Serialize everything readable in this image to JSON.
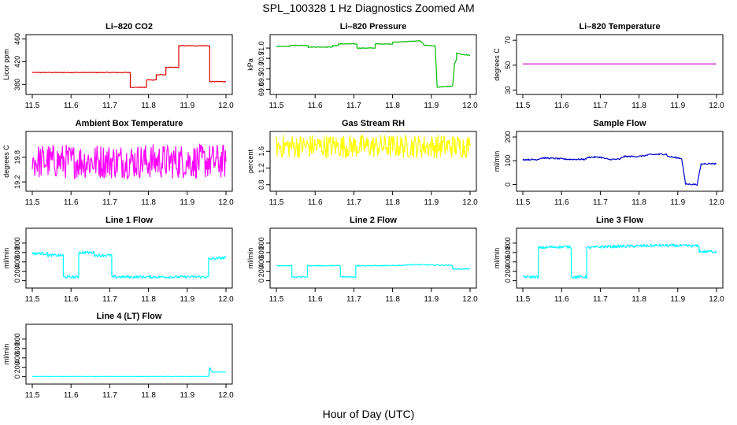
{
  "title": "SPL_100328  1 Hz Diagnostics Zoomed AM",
  "xlabel": "Hour of Day (UTC)",
  "chart_data": [
    {
      "type": "line",
      "title": "Li–820 CO2",
      "ylabel": "Licor ppm",
      "color": "#dd0000",
      "xlim": [
        11.5,
        12.0
      ],
      "ylim": [
        368,
        462
      ],
      "xticks": [
        "11.5",
        "11.6",
        "11.7",
        "11.8",
        "11.9",
        "12.0"
      ],
      "yticks": [
        "380",
        "420",
        "460"
      ],
      "ytick_values": [
        380,
        420,
        460
      ],
      "noise": 0.6,
      "series": [
        {
          "x": [
            11.5,
            11.753,
            11.753,
            11.795,
            11.795,
            11.82,
            11.82,
            11.845,
            11.845,
            11.878,
            11.878,
            11.958,
            11.958,
            12.0
          ],
          "y": [
            401,
            401,
            375,
            375,
            388,
            388,
            397,
            397,
            410,
            410,
            448,
            448,
            385,
            385
          ]
        }
      ]
    },
    {
      "type": "line",
      "title": "Li–820 Pressure",
      "ylabel": "kPa",
      "color": "#00bb00",
      "xlim": [
        11.5,
        12.0
      ],
      "ylim": [
        68.9,
        71.5
      ],
      "xticks": [
        "11.5",
        "11.6",
        "11.7",
        "11.8",
        "11.9",
        "12.0"
      ],
      "yticks": [
        "69.0",
        "69.5",
        "70.0",
        "70.5",
        "71.0"
      ],
      "ytick_values": [
        69.0,
        69.5,
        70.0,
        70.5,
        71.0
      ],
      "noise": 0.015,
      "series": [
        {
          "x": [
            11.5,
            11.535,
            11.535,
            11.582,
            11.582,
            11.645,
            11.645,
            11.66,
            11.66,
            11.708,
            11.708,
            11.755,
            11.755,
            11.8,
            11.8,
            11.87,
            11.87,
            11.88,
            11.88,
            11.91,
            11.915,
            11.915,
            11.955,
            11.96,
            11.965,
            11.965,
            11.98,
            12.0
          ],
          "y": [
            71.08,
            71.08,
            71.13,
            71.13,
            71.05,
            71.05,
            71.12,
            71.12,
            71.2,
            71.2,
            71.0,
            71.0,
            71.2,
            71.2,
            71.28,
            71.35,
            71.35,
            71.2,
            71.15,
            71.1,
            69.1,
            69.1,
            69.15,
            70.25,
            70.45,
            70.75,
            70.68,
            70.65
          ]
        }
      ]
    },
    {
      "type": "line",
      "title": "Li–820 Temperature",
      "ylabel": "degrees C",
      "color": "#cc00cc",
      "xlim": [
        11.5,
        12.0
      ],
      "ylim": [
        29,
        72
      ],
      "xticks": [
        "11.5",
        "11.6",
        "11.7",
        "11.8",
        "11.9",
        "12.0"
      ],
      "yticks": [
        "30",
        "50",
        "70"
      ],
      "ytick_values": [
        30,
        50,
        70
      ],
      "noise": 0,
      "series": [
        {
          "x": [
            11.5,
            12.0
          ],
          "y": [
            51,
            51
          ]
        }
      ]
    },
    {
      "type": "line",
      "title": "Ambient Box Temperature",
      "ylabel": "degrees C",
      "color": "#ff00ff",
      "xlim": [
        11.5,
        12.0
      ],
      "ylim": [
        19.05,
        20.35
      ],
      "xticks": [
        "11.5",
        "11.6",
        "11.7",
        "11.8",
        "11.9",
        "12.0"
      ],
      "yticks": [
        "19.2",
        "19.8"
      ],
      "ytick_values": [
        19.2,
        19.8
      ],
      "noise": 0.42,
      "series": [
        {
          "x": [
            11.5,
            12.0
          ],
          "y": [
            19.7,
            19.7
          ]
        }
      ]
    },
    {
      "type": "line",
      "title": "Gas Stream RH",
      "ylabel": "percent",
      "color": "#ffff00",
      "xlim": [
        11.5,
        12.0
      ],
      "ylim": [
        0.72,
        2.0
      ],
      "xticks": [
        "11.5",
        "11.6",
        "11.7",
        "11.8",
        "11.9",
        "12.0"
      ],
      "yticks": [
        "0.8",
        "1.2",
        "1.6"
      ],
      "ytick_values": [
        0.8,
        1.2,
        1.6
      ],
      "noise": 0.28,
      "series": [
        {
          "x": [
            11.5,
            12.0
          ],
          "y": [
            1.72,
            1.72
          ]
        }
      ]
    },
    {
      "type": "line",
      "title": "Sample Flow",
      "ylabel": "ml/min",
      "color": "#0000cc",
      "xlim": [
        11.5,
        12.0
      ],
      "ylim": [
        -15,
        210
      ],
      "xticks": [
        "11.5",
        "11.6",
        "11.7",
        "11.8",
        "11.9",
        "12.0"
      ],
      "yticks": [
        "0",
        "100",
        "200"
      ],
      "ytick_values": [
        0,
        100,
        200
      ],
      "noise": 3,
      "series": [
        {
          "x": [
            11.5,
            11.535,
            11.55,
            11.58,
            11.62,
            11.66,
            11.67,
            11.7,
            11.72,
            11.75,
            11.76,
            11.8,
            11.83,
            11.87,
            11.875,
            11.9,
            11.91,
            11.92,
            11.95,
            11.96,
            11.97,
            12.0
          ],
          "y": [
            105,
            105,
            112,
            110,
            106,
            106,
            115,
            115,
            106,
            106,
            118,
            118,
            126,
            128,
            118,
            112,
            110,
            2,
            0,
            85,
            88,
            88
          ]
        }
      ]
    },
    {
      "type": "line",
      "title": "Line 1 Flow",
      "ylabel": "ml/min",
      "color": "#00ffff",
      "xlim": [
        11.5,
        12.0
      ],
      "ylim": [
        -90,
        1050
      ],
      "xticks": [
        "11.5",
        "11.6",
        "11.7",
        "11.8",
        "11.9",
        "12.0"
      ],
      "yticks": [
        "0",
        "200",
        "400",
        "600",
        "800"
      ],
      "ytick_values": [
        0,
        200,
        400,
        600,
        800
      ],
      "noise": 30,
      "series": [
        {
          "x": [
            11.5,
            11.54,
            11.54,
            11.58,
            11.58,
            11.62,
            11.62,
            11.66,
            11.66,
            11.705,
            11.705,
            11.955,
            11.955,
            12.0
          ],
          "y": [
            580,
            580,
            540,
            540,
            80,
            80,
            600,
            600,
            540,
            540,
            80,
            80,
            460,
            490
          ]
        }
      ]
    },
    {
      "type": "line",
      "title": "Line 2 Flow",
      "ylabel": "ml/min",
      "color": "#00ffff",
      "xlim": [
        11.5,
        12.0
      ],
      "ylim": [
        -90,
        1050
      ],
      "xticks": [
        "11.5",
        "11.6",
        "11.7",
        "11.8",
        "11.9",
        "12.0"
      ],
      "yticks": [
        "0",
        "200",
        "400",
        "600",
        "800"
      ],
      "ytick_values": [
        0,
        200,
        400,
        600,
        800
      ],
      "noise": 10,
      "series": [
        {
          "x": [
            11.5,
            11.54,
            11.54,
            11.58,
            11.58,
            11.665,
            11.665,
            11.705,
            11.705,
            11.8,
            11.85,
            11.95,
            11.955,
            11.955,
            12.0
          ],
          "y": [
            320,
            320,
            80,
            80,
            320,
            320,
            80,
            80,
            320,
            320,
            340,
            330,
            330,
            250,
            250
          ]
        }
      ]
    },
    {
      "type": "line",
      "title": "Line 3 Flow",
      "ylabel": "ml/min",
      "color": "#00ffff",
      "xlim": [
        11.5,
        12.0
      ],
      "ylim": [
        -90,
        1050
      ],
      "xticks": [
        "11.5",
        "11.6",
        "11.7",
        "11.8",
        "11.9",
        "12.0"
      ],
      "yticks": [
        "0",
        "200",
        "400",
        "600",
        "800"
      ],
      "ytick_values": [
        0,
        200,
        400,
        600,
        800
      ],
      "noise": 30,
      "series": [
        {
          "x": [
            11.5,
            11.54,
            11.54,
            11.585,
            11.625,
            11.625,
            11.665,
            11.665,
            11.7,
            11.75,
            11.8,
            11.85,
            11.95,
            11.955,
            11.955,
            12.0
          ],
          "y": [
            80,
            80,
            700,
            720,
            720,
            80,
            80,
            700,
            720,
            730,
            740,
            750,
            740,
            720,
            620,
            620
          ]
        }
      ]
    },
    {
      "type": "line",
      "title": "Line 4 (LT) Flow",
      "ylabel": "ml/min",
      "color": "#00ffff",
      "xlim": [
        11.5,
        12.0
      ],
      "ylim": [
        -90,
        1050
      ],
      "xticks": [
        "11.5",
        "11.6",
        "11.7",
        "11.8",
        "11.9",
        "12.0"
      ],
      "yticks": [
        "0",
        "200",
        "400",
        "600",
        "800"
      ],
      "ytick_values": [
        0,
        200,
        400,
        600,
        800
      ],
      "noise": 3,
      "series": [
        {
          "x": [
            11.5,
            11.955,
            11.958,
            11.962,
            11.966,
            12.0
          ],
          "y": [
            5,
            5,
            200,
            120,
            100,
            100
          ]
        }
      ]
    }
  ]
}
